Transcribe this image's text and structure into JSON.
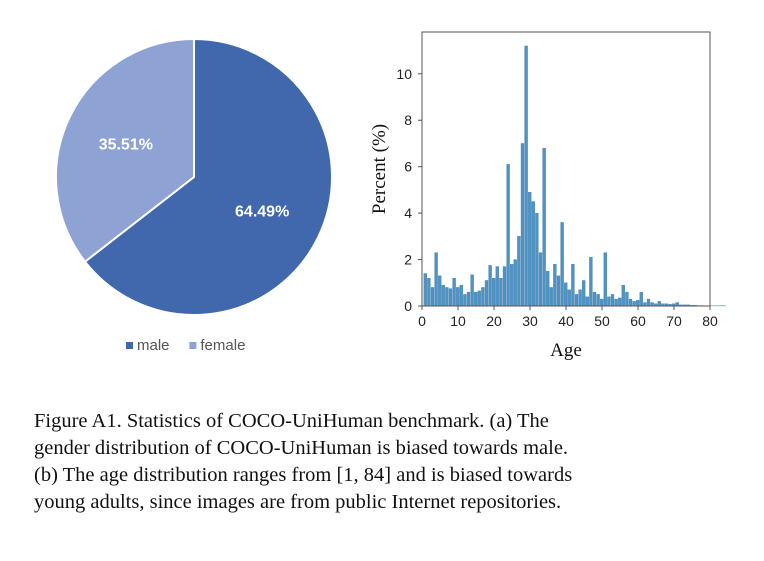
{
  "chart_data": [
    {
      "type": "pie",
      "categories": [
        "male",
        "female"
      ],
      "values": [
        64.49,
        35.51
      ],
      "value_labels": [
        "64.49%",
        "35.51%"
      ],
      "colors": [
        "#4167ad",
        "#8ea3d4"
      ],
      "legend": [
        "male",
        "female"
      ],
      "legend_placement": "bottom"
    },
    {
      "type": "bar",
      "xlabel": "Age",
      "ylabel": "Percent (%)",
      "xlim": [
        0,
        80
      ],
      "ylim": [
        0,
        11.8
      ],
      "xticks": [
        "0",
        "10",
        "20",
        "30",
        "40",
        "50",
        "60",
        "70",
        "80"
      ],
      "yticks": [
        "0",
        "2",
        "4",
        "6",
        "8",
        "10"
      ],
      "color": "#4f93c4",
      "grid": false,
      "x": [
        1,
        2,
        3,
        4,
        5,
        6,
        7,
        8,
        9,
        10,
        11,
        12,
        13,
        14,
        15,
        16,
        17,
        18,
        19,
        20,
        21,
        22,
        23,
        24,
        25,
        26,
        27,
        28,
        29,
        30,
        31,
        32,
        33,
        34,
        35,
        36,
        37,
        38,
        39,
        40,
        41,
        42,
        43,
        44,
        45,
        46,
        47,
        48,
        49,
        50,
        51,
        52,
        53,
        54,
        55,
        56,
        57,
        58,
        59,
        60,
        61,
        62,
        63,
        64,
        65,
        66,
        67,
        68,
        69,
        70,
        71,
        72,
        73,
        74,
        75,
        76,
        77,
        78,
        79,
        80,
        81,
        82,
        83,
        84
      ],
      "values": [
        1.4,
        1.2,
        0.8,
        2.3,
        1.3,
        0.9,
        0.8,
        0.75,
        1.2,
        0.8,
        0.9,
        0.5,
        0.6,
        1.35,
        0.6,
        0.65,
        0.8,
        1.1,
        1.75,
        1.2,
        1.7,
        1.2,
        1.7,
        6.1,
        1.8,
        2.0,
        3.0,
        7.0,
        11.2,
        4.9,
        4.5,
        4.0,
        2.3,
        6.8,
        1.5,
        0.8,
        1.8,
        1.3,
        3.6,
        1.0,
        0.7,
        1.8,
        0.5,
        0.7,
        1.1,
        0.4,
        2.1,
        0.6,
        0.5,
        0.3,
        2.3,
        0.4,
        0.5,
        0.3,
        0.35,
        0.9,
        0.6,
        0.3,
        0.2,
        0.25,
        0.6,
        0.15,
        0.3,
        0.15,
        0.1,
        0.2,
        0.1,
        0.1,
        0.08,
        0.1,
        0.15,
        0.05,
        0.05,
        0.05,
        0.03,
        0.03,
        0.02,
        0.02,
        0.01,
        0.01,
        0.01,
        0.01,
        0.01,
        0.01
      ]
    }
  ],
  "caption": {
    "lines": [
      "Figure A1.  Statistics of COCO-UniHuman benchmark.  (a) The",
      "gender distribution of COCO-UniHuman is biased towards male.",
      "(b) The age distribution ranges from [1, 84] and is biased towards",
      "young adults, since images are from public Internet repositories."
    ]
  }
}
